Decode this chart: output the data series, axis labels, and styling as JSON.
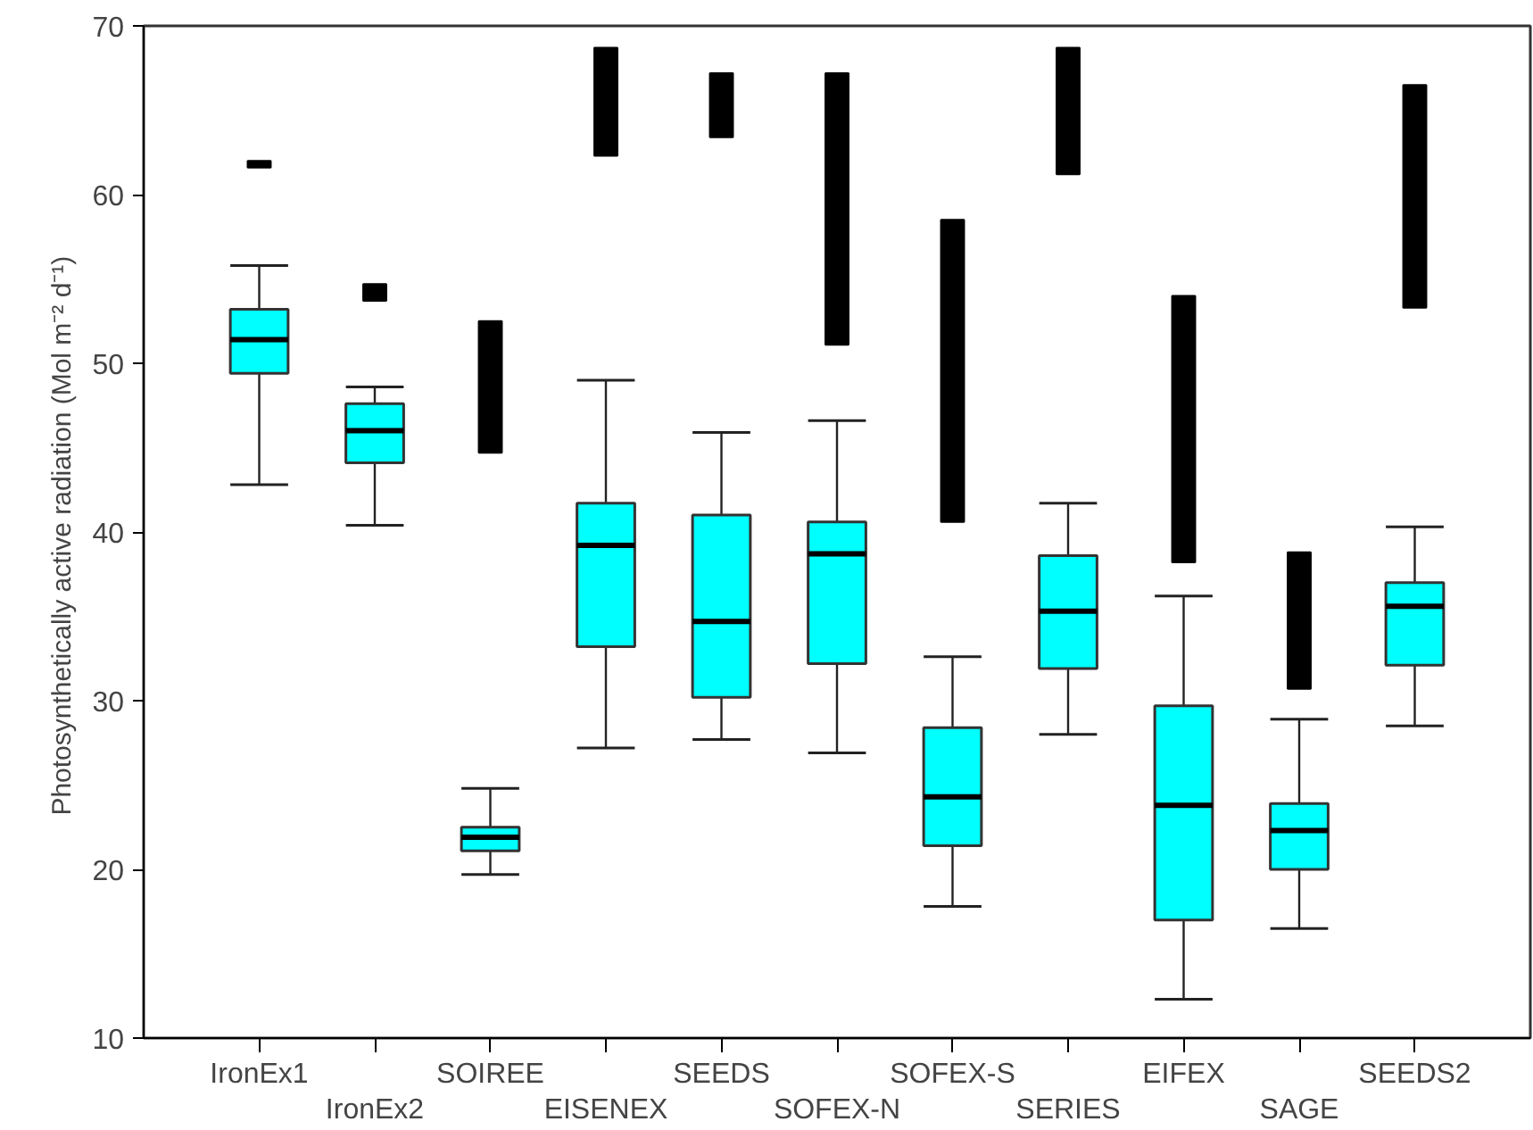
{
  "chart_data": {
    "type": "box",
    "ylabel": "Photosynthetically active radiation  (Mol m⁻² d⁻¹)",
    "categories": [
      "IronEx1",
      "IronEx2",
      "SOIREE",
      "EISENEX",
      "SEEDS",
      "SOFEX-N",
      "SOFEX-S",
      "SERIES",
      "EIFEX",
      "SAGE",
      "SEEDS2"
    ],
    "series": [
      {
        "color": "#00ffff",
        "boxes": [
          {
            "low": 42.8,
            "q1": 49.4,
            "median": 51.4,
            "q3": 53.2,
            "high": 55.8
          },
          {
            "low": 40.4,
            "q1": 44.1,
            "median": 46.0,
            "q3": 47.6,
            "high": 48.6
          },
          {
            "low": 19.7,
            "q1": 21.1,
            "median": 21.9,
            "q3": 22.5,
            "high": 24.8
          },
          {
            "low": 27.2,
            "q1": 33.2,
            "median": 39.2,
            "q3": 41.7,
            "high": 49.0
          },
          {
            "low": 27.7,
            "q1": 30.2,
            "median": 34.7,
            "q3": 41.0,
            "high": 45.9
          },
          {
            "low": 26.9,
            "q1": 32.2,
            "median": 38.7,
            "q3": 40.6,
            "high": 46.6
          },
          {
            "low": 17.8,
            "q1": 21.4,
            "median": 24.3,
            "q3": 28.4,
            "high": 32.6
          },
          {
            "low": 28.0,
            "q1": 31.9,
            "median": 35.3,
            "q3": 38.6,
            "high": 41.7
          },
          {
            "low": 12.3,
            "q1": 17.0,
            "median": 23.8,
            "q3": 29.7,
            "high": 36.2
          },
          {
            "low": 16.5,
            "q1": 20.0,
            "median": 22.3,
            "q3": 23.9,
            "high": 28.9
          },
          {
            "low": 28.5,
            "q1": 32.1,
            "median": 35.6,
            "q3": 37.0,
            "high": 40.3
          }
        ]
      },
      {
        "type": "bar",
        "color": "#000000",
        "base": [
          61.6,
          53.7,
          44.7,
          62.3,
          63.4,
          51.1,
          40.6,
          61.2,
          38.2,
          30.7,
          53.3
        ],
        "values": [
          0.4,
          1.0,
          7.8,
          6.4,
          3.8,
          16.1,
          17.9,
          7.5,
          15.8,
          8.1,
          13.2
        ]
      }
    ],
    "ylim": [
      10,
      70
    ],
    "yticks": [
      10,
      20,
      30,
      40,
      50,
      60,
      70
    ],
    "grid": false
  }
}
